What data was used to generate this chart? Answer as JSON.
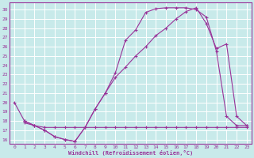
{
  "xlabel": "Windchill (Refroidissement éolien,°C)",
  "bg_color": "#c8eaea",
  "line_color": "#993399",
  "grid_color": "#ffffff",
  "xlim": [
    -0.5,
    23.5
  ],
  "ylim": [
    15.5,
    30.8
  ],
  "xticks": [
    0,
    1,
    2,
    3,
    4,
    5,
    6,
    7,
    8,
    9,
    10,
    11,
    12,
    13,
    14,
    15,
    16,
    17,
    18,
    19,
    20,
    21,
    22,
    23
  ],
  "yticks": [
    16,
    17,
    18,
    19,
    20,
    21,
    22,
    23,
    24,
    25,
    26,
    27,
    28,
    29,
    30
  ],
  "curve1_x": [
    0,
    1,
    2,
    3,
    4,
    5,
    6,
    7,
    8,
    9,
    10,
    11,
    12,
    13,
    14,
    15,
    16,
    17,
    18,
    19,
    20,
    21,
    22,
    23
  ],
  "curve1_y": [
    20.0,
    18.0,
    17.5,
    17.0,
    16.3,
    16.0,
    15.8,
    17.3,
    19.3,
    21.0,
    23.2,
    26.7,
    27.8,
    29.7,
    30.1,
    30.2,
    30.2,
    30.2,
    30.0,
    29.2,
    25.5,
    18.5,
    17.5,
    17.5
  ],
  "curve2_x": [
    1,
    2,
    3,
    4,
    5,
    6,
    7,
    8,
    9,
    10,
    11,
    12,
    13,
    14,
    15,
    16,
    17,
    18,
    19,
    20,
    21,
    22,
    23
  ],
  "curve2_y": [
    17.8,
    17.5,
    17.3,
    17.3,
    17.3,
    17.3,
    17.3,
    17.3,
    17.3,
    17.3,
    17.3,
    17.3,
    17.3,
    17.3,
    17.3,
    17.3,
    17.3,
    17.3,
    17.3,
    17.3,
    17.3,
    17.3,
    17.3
  ],
  "curve3_x": [
    1,
    2,
    3,
    4,
    5,
    6,
    7,
    8,
    9,
    10,
    11,
    12,
    13,
    14,
    15,
    16,
    17,
    18,
    19,
    20,
    21,
    22,
    23
  ],
  "curve3_y": [
    18.0,
    17.5,
    17.0,
    16.3,
    16.0,
    15.8,
    17.3,
    19.3,
    21.0,
    22.7,
    23.8,
    25.0,
    26.0,
    27.2,
    28.0,
    29.0,
    29.8,
    30.2,
    28.5,
    25.8,
    26.3,
    18.5,
    17.5
  ]
}
